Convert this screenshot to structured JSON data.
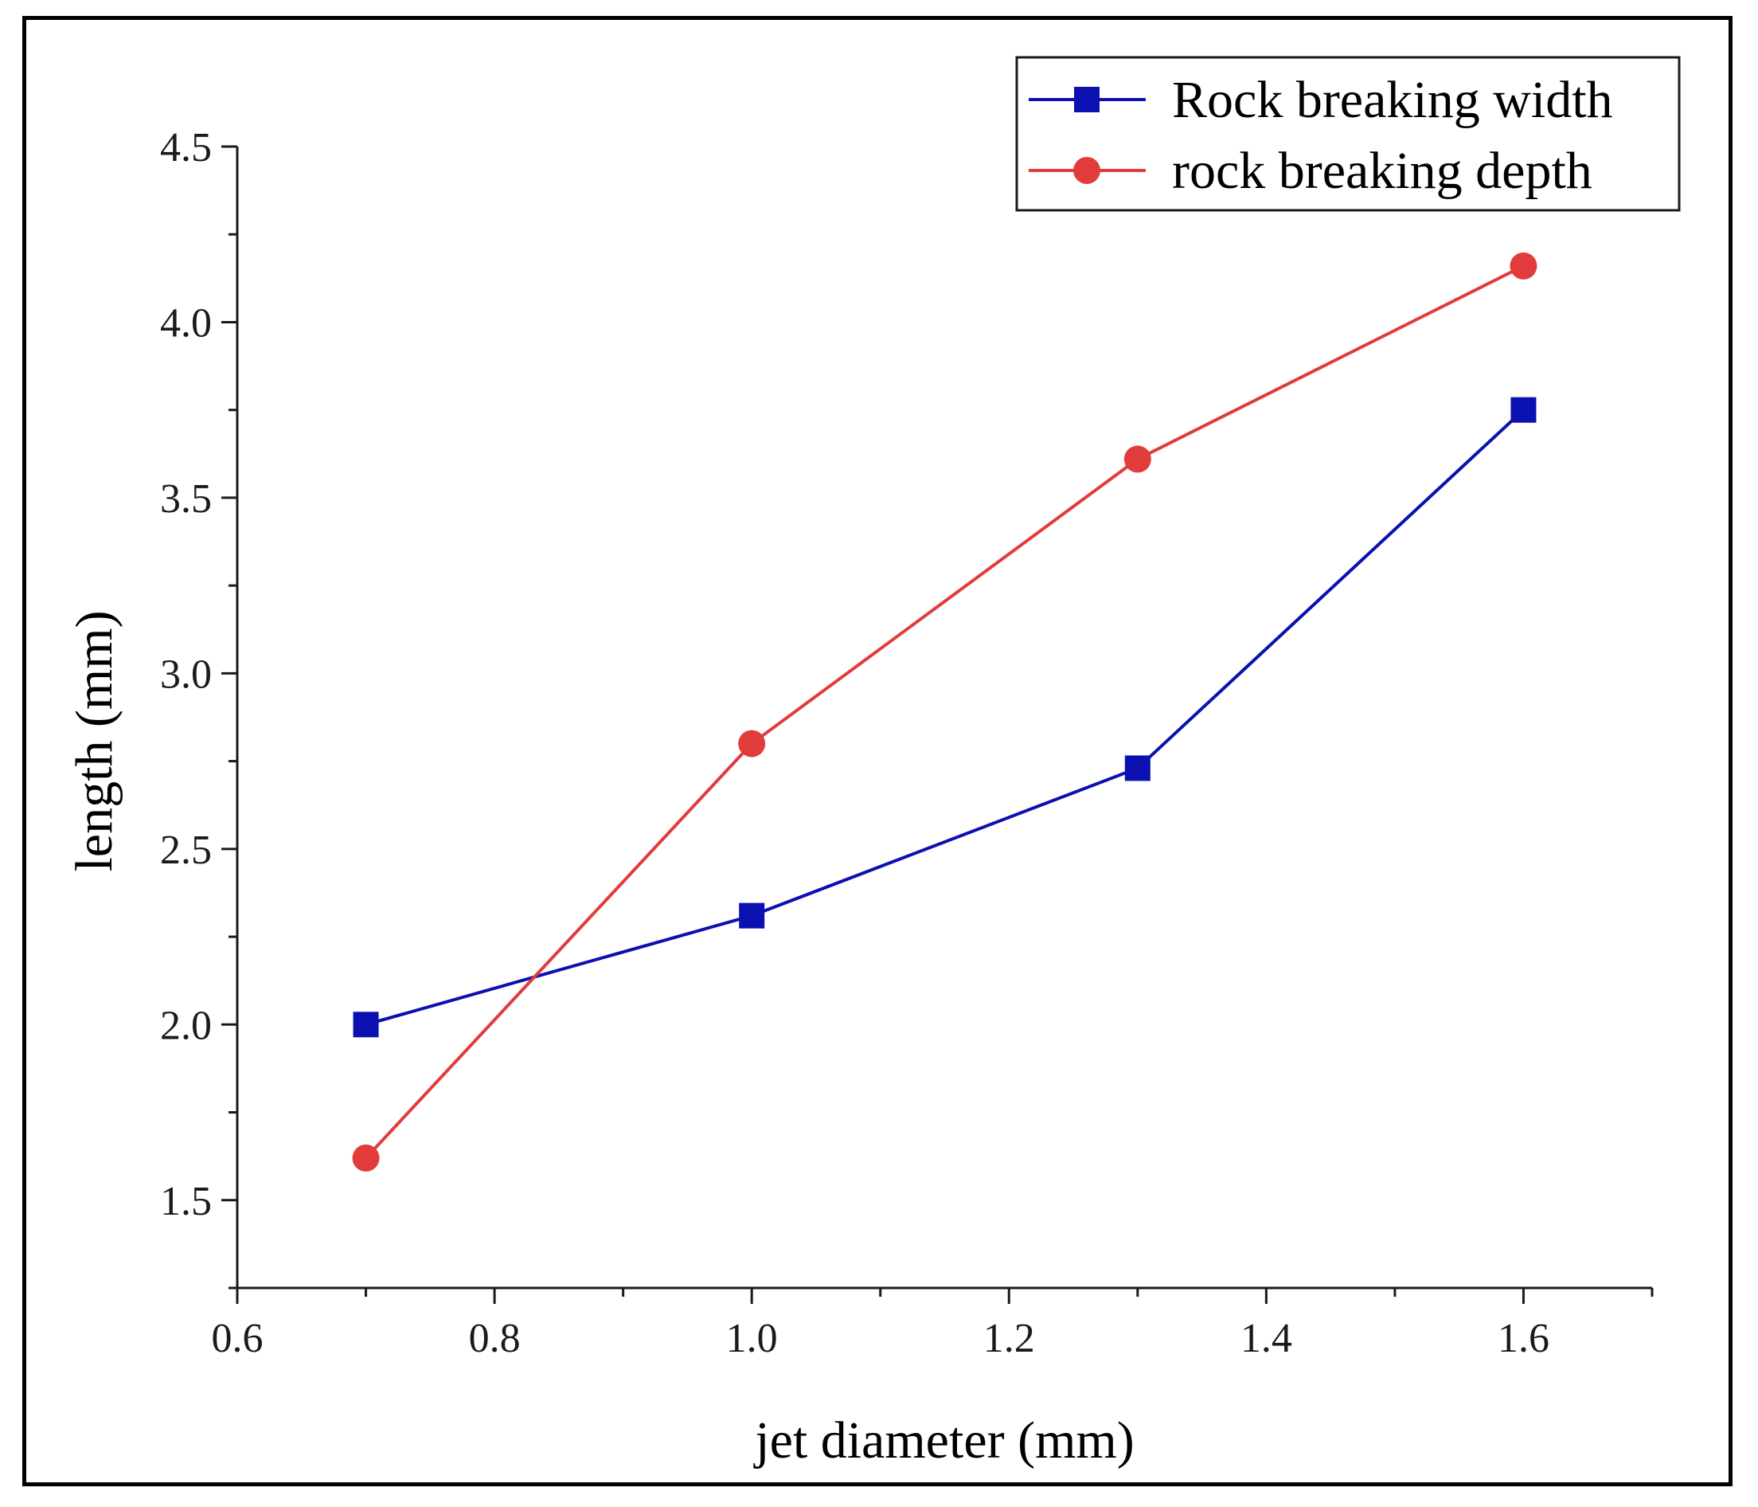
{
  "chart_data": {
    "type": "line",
    "title": "",
    "xlabel": "jet diameter (mm)",
    "ylabel": "length (mm)",
    "xlim": [
      0.6,
      1.7
    ],
    "ylim": [
      1.25,
      4.5
    ],
    "xticks": [
      0.6,
      0.8,
      1.0,
      1.2,
      1.4,
      1.6
    ],
    "xtick_labels": [
      "0.6",
      "0.8",
      "1.0",
      "1.2",
      "1.4",
      "1.6"
    ],
    "yticks": [
      1.5,
      2.0,
      2.5,
      3.0,
      3.5,
      4.0,
      4.5
    ],
    "ytick_labels": [
      "1.5",
      "2.0",
      "2.5",
      "3.0",
      "3.5",
      "4.0",
      "4.5"
    ],
    "grid": false,
    "legend_position": "top-right",
    "series": [
      {
        "name": "Rock breaking width",
        "color": "#0b10b0",
        "marker": "square",
        "x": [
          0.7,
          1.0,
          1.3,
          1.6
        ],
        "y": [
          2.0,
          2.31,
          2.73,
          3.75
        ]
      },
      {
        "name": "rock breaking depth",
        "color": "#e23b3b",
        "marker": "circle",
        "x": [
          0.7,
          1.0,
          1.3,
          1.6
        ],
        "y": [
          1.62,
          2.8,
          3.61,
          4.16
        ]
      }
    ]
  }
}
